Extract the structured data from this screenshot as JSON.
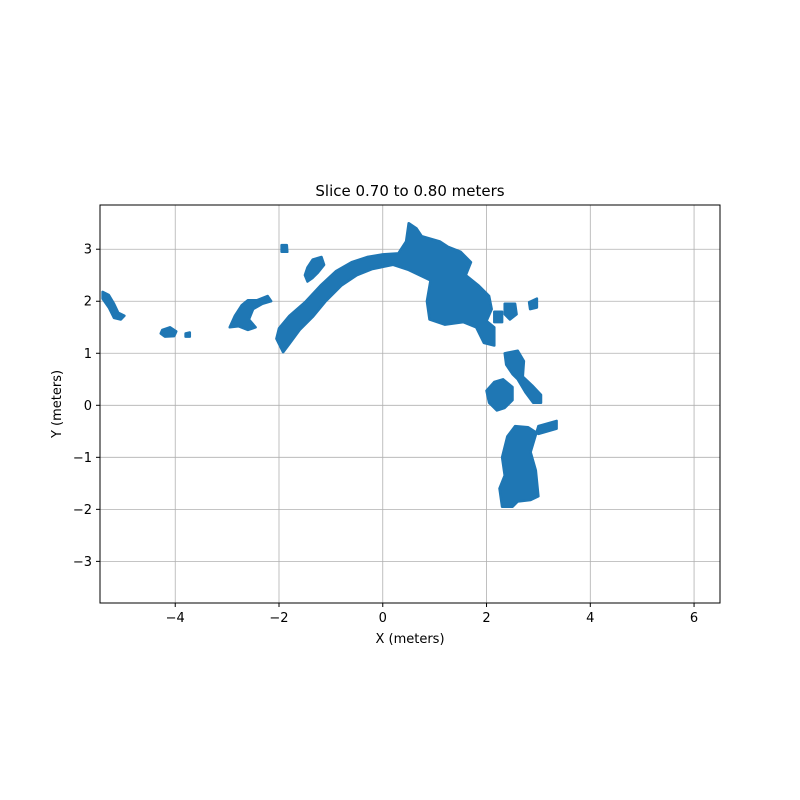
{
  "chart_data": {
    "type": "scatter",
    "title": "Slice 0.70 to 0.80 meters",
    "xlabel": "X (meters)",
    "ylabel": "Y (meters)",
    "xlim": [
      -5.45,
      6.5
    ],
    "ylim": [
      -3.8,
      3.85
    ],
    "xticks": [
      -4,
      -2,
      0,
      2,
      4,
      6
    ],
    "yticks": [
      -3,
      -2,
      -1,
      0,
      1,
      2,
      3
    ],
    "xtick_labels": [
      "−4",
      "−2",
      "0",
      "2",
      "4",
      "6"
    ],
    "ytick_labels": [
      "−3",
      "−2",
      "−1",
      "0",
      "1",
      "2",
      "3"
    ],
    "grid": true,
    "marker_color": "#1f77b4",
    "regions": [
      {
        "points": [
          [
            -5.4,
            2.18
          ],
          [
            -5.28,
            2.12
          ],
          [
            -5.18,
            1.95
          ],
          [
            -5.1,
            1.78
          ],
          [
            -4.98,
            1.72
          ],
          [
            -5.05,
            1.65
          ],
          [
            -5.18,
            1.68
          ],
          [
            -5.28,
            1.88
          ],
          [
            -5.4,
            2.05
          ]
        ]
      },
      {
        "points": [
          [
            -4.25,
            1.45
          ],
          [
            -4.1,
            1.5
          ],
          [
            -3.98,
            1.42
          ],
          [
            -4.02,
            1.33
          ],
          [
            -4.2,
            1.32
          ],
          [
            -4.28,
            1.38
          ]
        ]
      },
      {
        "points": [
          [
            -3.8,
            1.38
          ],
          [
            -3.72,
            1.4
          ],
          [
            -3.72,
            1.32
          ],
          [
            -3.8,
            1.32
          ]
        ]
      },
      {
        "points": [
          [
            -2.95,
            1.5
          ],
          [
            -2.85,
            1.72
          ],
          [
            -2.72,
            1.92
          ],
          [
            -2.6,
            2.02
          ],
          [
            -2.42,
            2.02
          ],
          [
            -2.22,
            2.1
          ],
          [
            -2.15,
            2.0
          ],
          [
            -2.32,
            1.95
          ],
          [
            -2.5,
            1.85
          ],
          [
            -2.58,
            1.65
          ],
          [
            -2.45,
            1.5
          ],
          [
            -2.6,
            1.45
          ],
          [
            -2.78,
            1.52
          ]
        ]
      },
      {
        "points": [
          [
            -1.95,
            3.08
          ],
          [
            -1.85,
            3.08
          ],
          [
            -1.84,
            2.95
          ],
          [
            -1.95,
            2.95
          ]
        ]
      },
      {
        "points": [
          [
            -1.5,
            2.5
          ],
          [
            -1.45,
            2.65
          ],
          [
            -1.35,
            2.8
          ],
          [
            -1.18,
            2.85
          ],
          [
            -1.13,
            2.7
          ],
          [
            -1.25,
            2.55
          ],
          [
            -1.35,
            2.45
          ],
          [
            -1.45,
            2.38
          ]
        ]
      },
      {
        "points": [
          [
            -2.05,
            1.28
          ],
          [
            -2.0,
            1.48
          ],
          [
            -1.8,
            1.72
          ],
          [
            -1.5,
            1.98
          ],
          [
            -1.2,
            2.3
          ],
          [
            -0.9,
            2.58
          ],
          [
            -0.6,
            2.75
          ],
          [
            -0.3,
            2.85
          ],
          [
            0.0,
            2.9
          ],
          [
            0.3,
            2.92
          ],
          [
            0.45,
            3.15
          ],
          [
            0.5,
            3.5
          ],
          [
            0.65,
            3.4
          ],
          [
            0.75,
            3.25
          ],
          [
            1.1,
            3.15
          ],
          [
            1.25,
            3.05
          ],
          [
            1.5,
            2.95
          ],
          [
            1.7,
            2.75
          ],
          [
            1.6,
            2.5
          ],
          [
            1.85,
            2.3
          ],
          [
            2.05,
            2.1
          ],
          [
            2.1,
            1.85
          ],
          [
            2.0,
            1.62
          ],
          [
            2.15,
            1.5
          ],
          [
            2.15,
            1.15
          ],
          [
            1.95,
            1.2
          ],
          [
            1.8,
            1.5
          ],
          [
            1.55,
            1.6
          ],
          [
            1.2,
            1.55
          ],
          [
            0.9,
            1.65
          ],
          [
            0.85,
            2.0
          ],
          [
            0.92,
            2.4
          ],
          [
            0.5,
            2.6
          ],
          [
            0.2,
            2.7
          ],
          [
            -0.2,
            2.62
          ],
          [
            -0.5,
            2.5
          ],
          [
            -0.8,
            2.3
          ],
          [
            -1.1,
            2.0
          ],
          [
            -1.35,
            1.7
          ],
          [
            -1.6,
            1.45
          ],
          [
            -1.8,
            1.18
          ],
          [
            -1.92,
            1.02
          ]
        ]
      },
      {
        "points": [
          [
            2.35,
            1.95
          ],
          [
            2.55,
            1.95
          ],
          [
            2.58,
            1.75
          ],
          [
            2.45,
            1.65
          ],
          [
            2.35,
            1.75
          ]
        ]
      },
      {
        "points": [
          [
            2.15,
            1.8
          ],
          [
            2.3,
            1.8
          ],
          [
            2.3,
            1.6
          ],
          [
            2.15,
            1.6
          ]
        ]
      },
      {
        "points": [
          [
            2.82,
            1.98
          ],
          [
            2.97,
            2.05
          ],
          [
            2.97,
            1.88
          ],
          [
            2.84,
            1.85
          ]
        ]
      },
      {
        "points": [
          [
            2.35,
            1.0
          ],
          [
            2.6,
            1.05
          ],
          [
            2.72,
            0.85
          ],
          [
            2.7,
            0.55
          ],
          [
            2.88,
            0.38
          ],
          [
            3.05,
            0.2
          ],
          [
            3.05,
            0.05
          ],
          [
            2.9,
            0.05
          ],
          [
            2.75,
            0.25
          ],
          [
            2.6,
            0.5
          ],
          [
            2.5,
            0.6
          ],
          [
            2.38,
            0.78
          ]
        ]
      },
      {
        "points": [
          [
            2.0,
            0.28
          ],
          [
            2.15,
            0.45
          ],
          [
            2.32,
            0.5
          ],
          [
            2.5,
            0.35
          ],
          [
            2.5,
            0.1
          ],
          [
            2.35,
            -0.05
          ],
          [
            2.2,
            -0.1
          ],
          [
            2.05,
            0.05
          ]
        ]
      },
      {
        "points": [
          [
            2.3,
            -1.0
          ],
          [
            2.4,
            -0.6
          ],
          [
            2.55,
            -0.4
          ],
          [
            2.8,
            -0.42
          ],
          [
            3.0,
            -0.55
          ],
          [
            3.35,
            -0.45
          ],
          [
            3.35,
            -0.3
          ],
          [
            3.0,
            -0.4
          ],
          [
            2.85,
            -0.9
          ],
          [
            2.95,
            -1.25
          ],
          [
            3.0,
            -1.75
          ],
          [
            2.85,
            -1.82
          ],
          [
            2.6,
            -1.85
          ],
          [
            2.5,
            -1.95
          ],
          [
            2.3,
            -1.95
          ],
          [
            2.25,
            -1.6
          ],
          [
            2.35,
            -1.35
          ]
        ]
      }
    ]
  }
}
